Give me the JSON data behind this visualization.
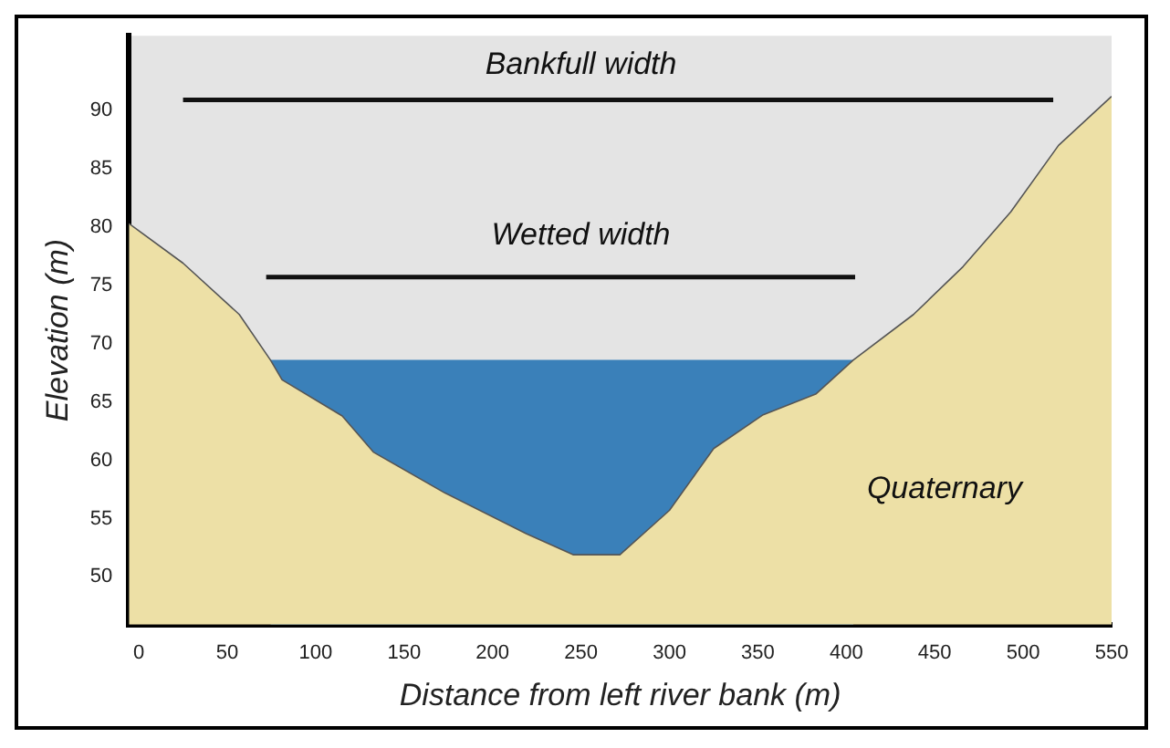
{
  "chart_data": {
    "type": "area",
    "xlabel": "Distance from left river bank (m)",
    "ylabel": "Elevation (m)",
    "xlim": [
      -5.6,
      550
    ],
    "ylim": [
      45.9,
      96.4
    ],
    "xticks": [
      0,
      50,
      100,
      150,
      200,
      250,
      300,
      350,
      400,
      450,
      500,
      550
    ],
    "yticks": [
      50,
      55,
      60,
      65,
      70,
      75,
      80,
      85,
      90
    ],
    "grid": false,
    "legend": false,
    "series": [
      {
        "color": "#ede0a6",
        "x": [
          -5.6,
          25,
          56.8,
          74.4,
          81,
          115,
          132.6,
          173,
          219,
          245.5,
          272,
          300,
          325,
          353,
          383,
          404,
          438,
          466,
          493,
          520,
          550
        ],
        "values": [
          80.3,
          76.9,
          72.5,
          68.6,
          66.9,
          63.8,
          60.7,
          57.2,
          53.7,
          51.9,
          51.9,
          55.7,
          61,
          63.9,
          65.7,
          68.6,
          72.5,
          76.6,
          81.3,
          87,
          91.2
        ]
      },
      {
        "color": "#3a80b9",
        "x": [
          74.4,
          404
        ],
        "values": [
          68.6,
          68.6
        ]
      },
      {
        "type": "line",
        "color": "#111111",
        "x": [
          25,
          517
        ],
        "values": [
          90.9,
          90.9
        ]
      },
      {
        "type": "line",
        "color": "#111111",
        "x": [
          72,
          405
        ],
        "values": [
          75.7,
          75.7
        ]
      }
    ],
    "annotations": [
      "Bankfull width",
      "Wetted width",
      "Quaternary"
    ]
  }
}
